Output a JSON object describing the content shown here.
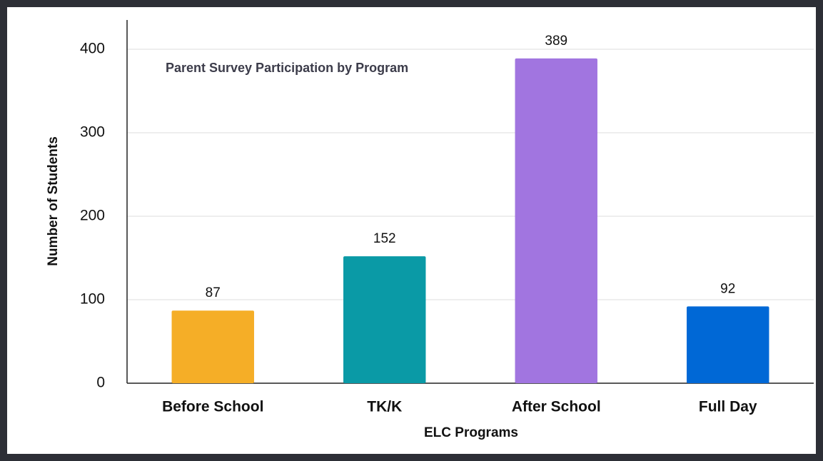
{
  "chart_data": {
    "type": "bar",
    "title": "Parent Survey Participation by Program",
    "x_label": "ELC Programs",
    "y_label": "Number of Students",
    "categories": [
      "Before School",
      "TK/K",
      "After School",
      "Full Day"
    ],
    "values": [
      87,
      152,
      389,
      92
    ],
    "colors": [
      "#f5ae27",
      "#0a9aa6",
      "#a175e0",
      "#0068d6"
    ],
    "ylim": [
      0,
      435
    ],
    "yticks": [
      0,
      100,
      200,
      300,
      400
    ],
    "grid": true
  }
}
